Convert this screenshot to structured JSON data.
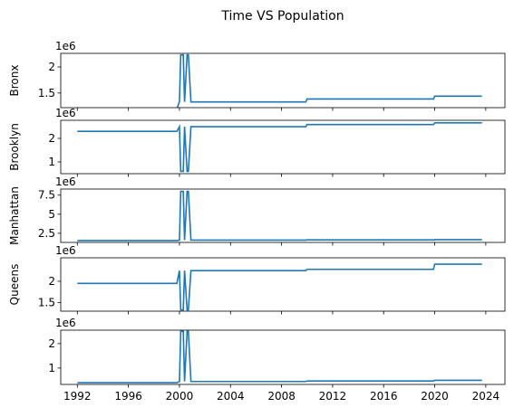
{
  "title": "Time VS Population",
  "chart_data": [
    {
      "type": "line",
      "ylabel": "Bronx",
      "offset_label": "1e6",
      "x": [
        1992,
        1999.8,
        2000.0,
        2000.1,
        2000.3,
        2000.4,
        2000.6,
        2000.7,
        2000.9,
        2001.0,
        2009.9,
        2010.0,
        2019.9,
        2020.0,
        2023.7
      ],
      "series": [
        {
          "color": "#1f77b4",
          "values": [
            1.2,
            1.2,
            1.33,
            2.23,
            2.23,
            1.33,
            2.23,
            2.23,
            1.33,
            1.33,
            1.33,
            1.385,
            1.385,
            1.44,
            1.44
          ]
        }
      ],
      "xlim": [
        1990.7,
        2025.5
      ],
      "ylim": [
        1.22,
        2.26
      ],
      "yticks": [
        1.5,
        2.0
      ]
    },
    {
      "type": "line",
      "ylabel": "Brooklyn",
      "offset_label": "1e6",
      "x": [
        1992,
        1999.8,
        2000.0,
        2000.1,
        2000.3,
        2000.4,
        2000.6,
        2000.7,
        2000.9,
        2001.0,
        2009.9,
        2010.0,
        2019.9,
        2020.0,
        2023.7
      ],
      "series": [
        {
          "color": "#1f77b4",
          "values": [
            2.3,
            2.3,
            2.5,
            0.6,
            0.6,
            2.5,
            0.6,
            0.6,
            2.5,
            2.5,
            2.5,
            2.59,
            2.59,
            2.66,
            2.66
          ]
        }
      ],
      "xlim": [
        1990.7,
        2025.5
      ],
      "ylim": [
        0.5,
        2.77
      ],
      "yticks": [
        1,
        2
      ]
    },
    {
      "type": "line",
      "ylabel": "Manhattan",
      "offset_label": "1e6",
      "x": [
        1992,
        1999.8,
        2000.0,
        2000.1,
        2000.3,
        2000.4,
        2000.6,
        2000.7,
        2000.9,
        2001.0,
        2009.9,
        2010.0,
        2019.9,
        2020.0,
        2023.7
      ],
      "series": [
        {
          "color": "#1f77b4",
          "values": [
            1.55,
            1.55,
            1.6,
            8.0,
            8.0,
            1.6,
            8.0,
            8.0,
            1.6,
            1.6,
            1.6,
            1.63,
            1.63,
            1.66,
            1.66
          ]
        }
      ],
      "xlim": [
        1990.7,
        2025.5
      ],
      "ylim": [
        1.3,
        8.3
      ],
      "yticks": [
        2.5,
        5.0,
        7.5
      ]
    },
    {
      "type": "line",
      "ylabel": "Queens",
      "offset_label": "1e6",
      "x": [
        1992,
        1999.8,
        2000.0,
        2000.1,
        2000.3,
        2000.4,
        2000.6,
        2000.7,
        2000.9,
        2001.0,
        2009.9,
        2010.0,
        2019.9,
        2020.0,
        2023.7
      ],
      "series": [
        {
          "color": "#1f77b4",
          "values": [
            1.95,
            1.95,
            2.25,
            1.33,
            1.33,
            2.25,
            1.33,
            1.33,
            2.25,
            2.25,
            2.25,
            2.28,
            2.28,
            2.4,
            2.4
          ]
        }
      ],
      "xlim": [
        1990.7,
        2025.5
      ],
      "ylim": [
        1.3,
        2.55
      ],
      "yticks": [
        1.5,
        2.0
      ]
    },
    {
      "type": "line",
      "offset_label": "1e6",
      "x": [
        1992,
        1999.8,
        2000.0,
        2000.1,
        2000.3,
        2000.4,
        2000.6,
        2000.7,
        2000.9,
        2001.0,
        2009.9,
        2010.0,
        2019.9,
        2020.0,
        2023.7
      ],
      "series": [
        {
          "color": "#1f77b4",
          "values": [
            0.4,
            0.4,
            0.45,
            2.5,
            2.5,
            0.45,
            2.5,
            2.5,
            0.45,
            0.45,
            0.45,
            0.47,
            0.47,
            0.5,
            0.5
          ]
        }
      ],
      "xlim": [
        1990.7,
        2025.5
      ],
      "ylim": [
        0.33,
        2.55
      ],
      "yticks": [
        1,
        2
      ],
      "xticks": [
        1992,
        1996,
        2000,
        2004,
        2008,
        2012,
        2016,
        2020,
        2024
      ]
    }
  ]
}
